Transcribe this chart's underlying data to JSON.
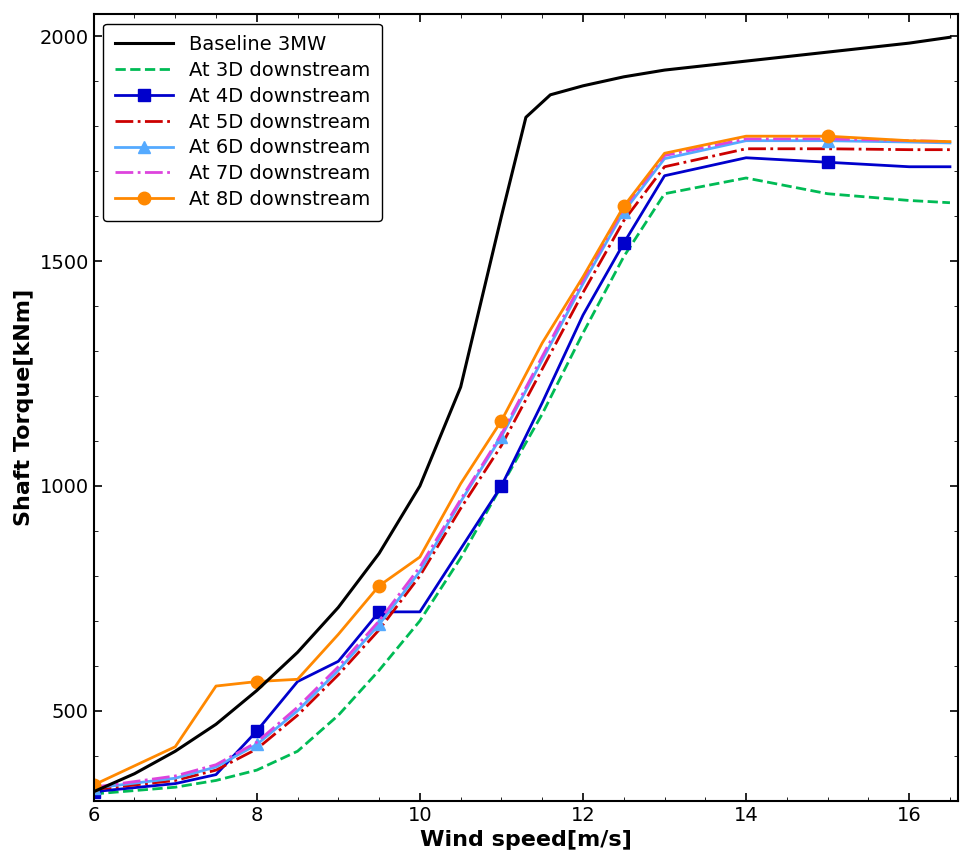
{
  "title": "",
  "xlabel": "Wind speed[m/s]",
  "ylabel": "Shaft Torque[kNm]",
  "xlim": [
    6,
    16.6
  ],
  "ylim": [
    300,
    2050
  ],
  "yticks": [
    500,
    1000,
    1500,
    2000
  ],
  "xticks": [
    6,
    8,
    10,
    12,
    14,
    16
  ],
  "baseline": {
    "x": [
      6.0,
      6.5,
      7.0,
      7.5,
      8.0,
      8.5,
      9.0,
      9.5,
      10.0,
      10.5,
      11.0,
      11.3,
      11.6,
      12.0,
      12.5,
      13.0,
      14.0,
      15.0,
      16.0,
      16.5
    ],
    "y": [
      320,
      360,
      410,
      470,
      545,
      630,
      730,
      850,
      1000,
      1220,
      1600,
      1820,
      1870,
      1890,
      1910,
      1925,
      1945,
      1965,
      1985,
      1998
    ],
    "color": "#000000",
    "linestyle": "-",
    "linewidth": 2.2,
    "label": "Baseline 3MW",
    "marker": null
  },
  "series": [
    {
      "label": "At 3D downstream",
      "color": "#00bb55",
      "linestyle": "--",
      "linewidth": 2.0,
      "marker": null,
      "markersize": 8,
      "markevery": null,
      "x": [
        6.0,
        7.0,
        7.5,
        8.0,
        8.5,
        9.0,
        9.5,
        10.0,
        10.5,
        11.0,
        11.5,
        12.0,
        12.5,
        13.0,
        14.0,
        15.0,
        16.0,
        16.5
      ],
      "y": [
        315,
        330,
        345,
        368,
        410,
        490,
        590,
        700,
        840,
        1000,
        1160,
        1340,
        1510,
        1650,
        1685,
        1650,
        1635,
        1630
      ]
    },
    {
      "label": "At 4D downstream",
      "color": "#0000cc",
      "linestyle": "-",
      "linewidth": 2.0,
      "marker": "s",
      "markersize": 8,
      "markevery": 3,
      "x": [
        6.0,
        7.0,
        7.5,
        8.0,
        8.5,
        9.0,
        9.5,
        10.0,
        10.5,
        11.0,
        11.5,
        12.0,
        12.5,
        13.0,
        14.0,
        15.0,
        16.0,
        16.5
      ],
      "y": [
        320,
        338,
        358,
        455,
        565,
        610,
        720,
        720,
        860,
        1000,
        1185,
        1380,
        1540,
        1690,
        1730,
        1720,
        1710,
        1710
      ]
    },
    {
      "label": "At 5D downstream",
      "color": "#cc0000",
      "linestyle": "-.",
      "linewidth": 2.0,
      "marker": null,
      "markersize": 8,
      "markevery": null,
      "x": [
        6.0,
        7.0,
        7.5,
        8.0,
        8.5,
        9.0,
        9.5,
        10.0,
        10.5,
        11.0,
        11.5,
        12.0,
        12.5,
        13.0,
        14.0,
        15.0,
        16.0,
        16.5
      ],
      "y": [
        325,
        345,
        368,
        415,
        490,
        580,
        680,
        800,
        950,
        1090,
        1260,
        1430,
        1590,
        1710,
        1750,
        1750,
        1748,
        1748
      ]
    },
    {
      "label": "At 6D downstream",
      "color": "#55aaff",
      "linestyle": "-",
      "linewidth": 2.0,
      "marker": "^",
      "markersize": 8,
      "markevery": 3,
      "x": [
        6.0,
        7.0,
        7.5,
        8.0,
        8.5,
        9.0,
        9.5,
        10.0,
        10.5,
        11.0,
        11.5,
        12.0,
        12.5,
        13.0,
        14.0,
        15.0,
        16.0,
        16.5
      ],
      "y": [
        328,
        350,
        375,
        425,
        500,
        590,
        692,
        810,
        965,
        1110,
        1280,
        1450,
        1610,
        1728,
        1768,
        1768,
        1765,
        1763
      ]
    },
    {
      "label": "At 7D downstream",
      "color": "#dd44dd",
      "linestyle": "-.",
      "linewidth": 2.0,
      "marker": null,
      "markersize": 8,
      "markevery": null,
      "x": [
        6.0,
        7.0,
        7.5,
        8.0,
        8.5,
        9.0,
        9.5,
        10.0,
        10.5,
        11.0,
        11.5,
        12.0,
        12.5,
        13.0,
        14.0,
        15.0,
        16.0,
        16.5
      ],
      "y": [
        330,
        355,
        380,
        430,
        508,
        598,
        700,
        820,
        970,
        1115,
        1288,
        1458,
        1618,
        1735,
        1772,
        1772,
        1768,
        1766
      ]
    },
    {
      "label": "At 8D downstream",
      "color": "#ff8800",
      "linestyle": "-",
      "linewidth": 2.0,
      "marker": "o",
      "markersize": 9,
      "markevery": 3,
      "x": [
        6.0,
        7.0,
        7.5,
        8.0,
        8.5,
        9.0,
        9.5,
        10.0,
        10.5,
        11.0,
        11.5,
        12.0,
        12.5,
        13.0,
        14.0,
        15.0,
        16.0,
        16.5
      ],
      "y": [
        335,
        420,
        555,
        565,
        570,
        670,
        778,
        842,
        1005,
        1145,
        1318,
        1465,
        1622,
        1740,
        1778,
        1778,
        1768,
        1766
      ]
    }
  ],
  "legend_fontsize": 14,
  "axis_fontsize": 16,
  "tick_fontsize": 14,
  "background_color": "#ffffff"
}
